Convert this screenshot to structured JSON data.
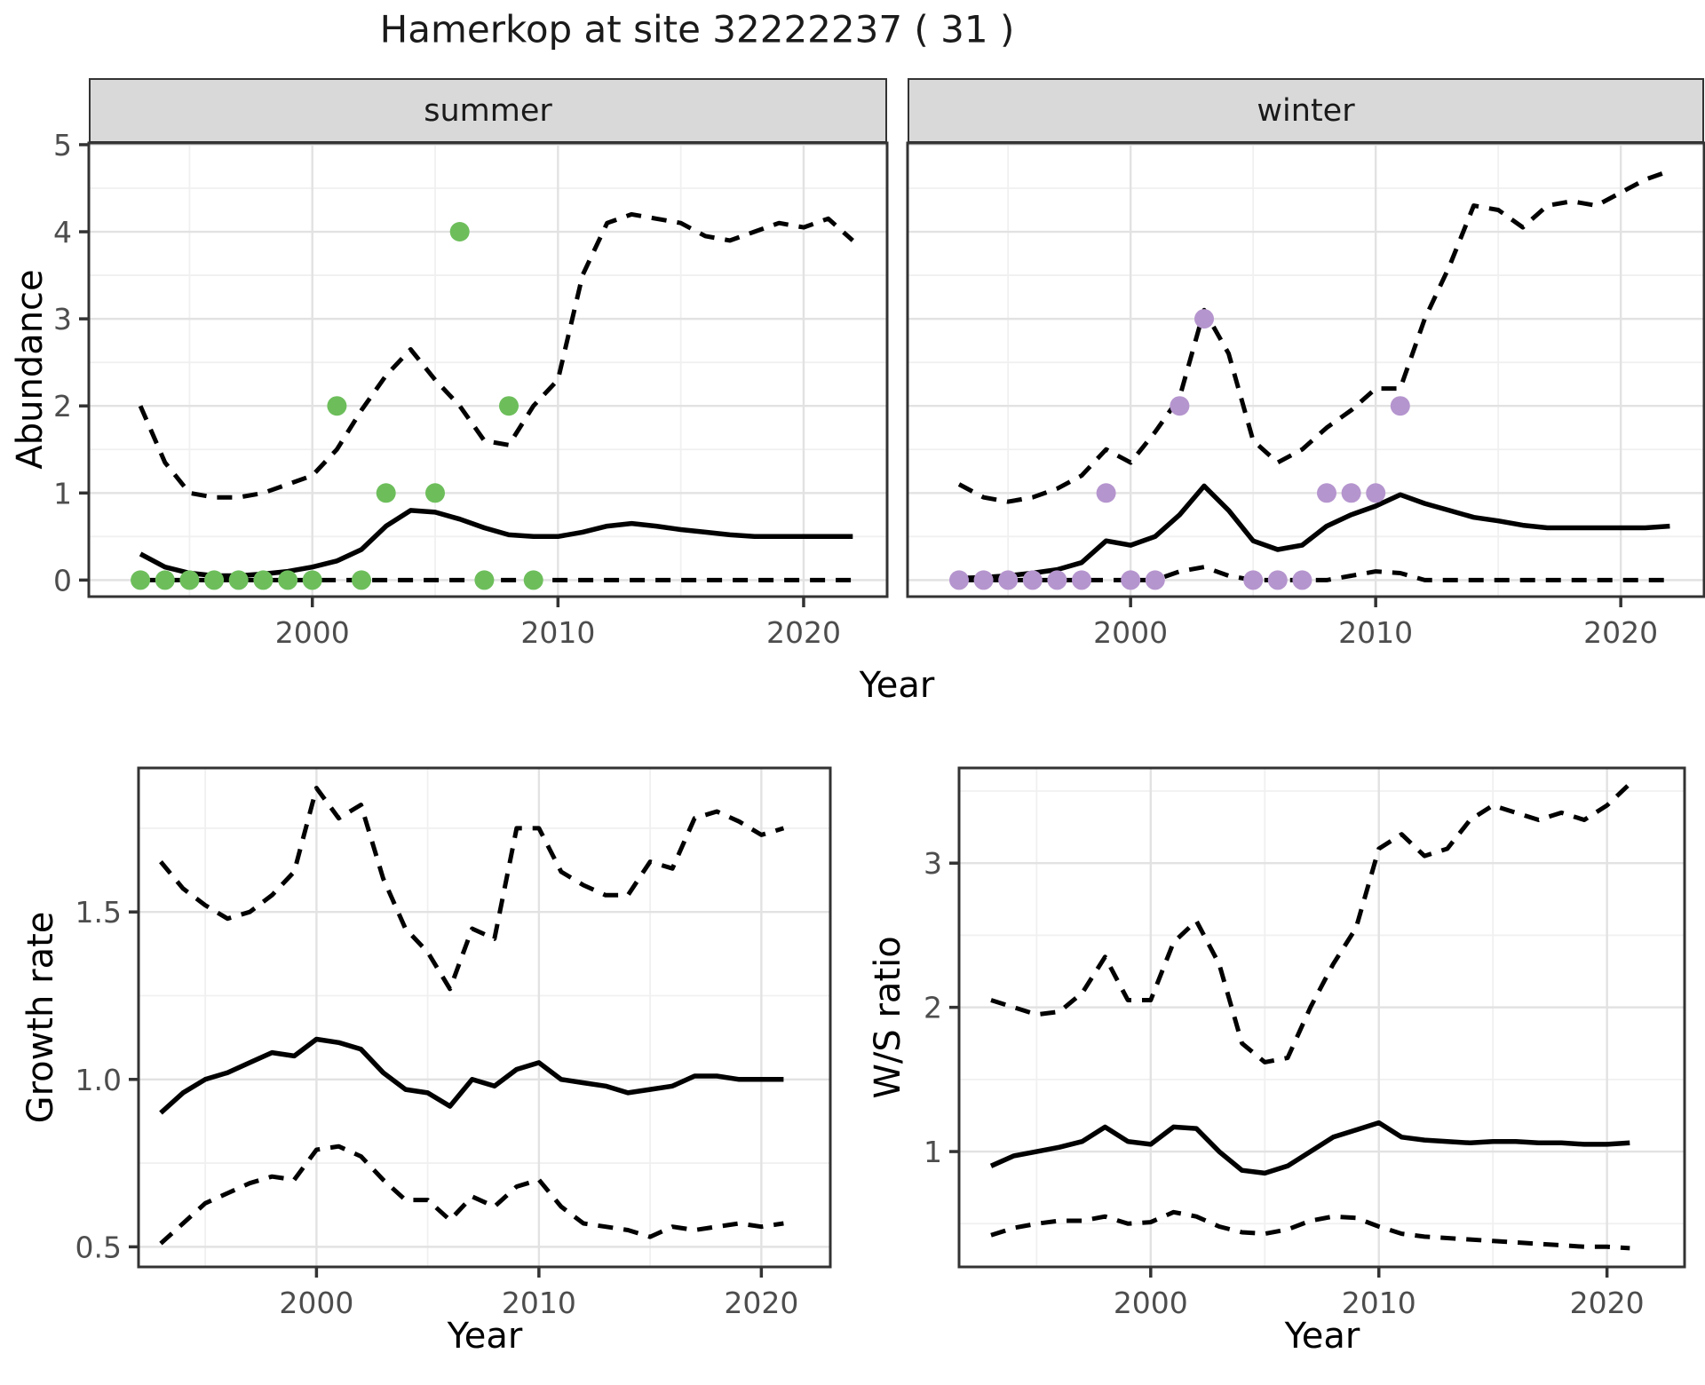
{
  "title": "Hamerkop at site 32222237 ( 31 )",
  "labels": {
    "abundance": "Abundance",
    "growth_rate": "Growth rate",
    "ws_ratio": "W/S ratio",
    "year": "Year"
  },
  "colors": {
    "panel_bg": "#ffffff",
    "panel_border": "#333333",
    "grid_major": "#e2e2e2",
    "grid_minor": "#f0f0f0",
    "tick_text": "#4d4d4d",
    "line": "#000000",
    "strip_bg": "#d9d9d9",
    "summer_point": "#6dbe5b",
    "winter_point": "#b595ce"
  },
  "chart_data": [
    {
      "id": "summer",
      "type": "line",
      "facet": "summer",
      "title": "Abundance, summer facet",
      "xlabel": "Year",
      "ylabel": "Abundance",
      "xlim": [
        1990.9,
        2023.4
      ],
      "ylim": [
        -0.19,
        5.02
      ],
      "x_ticks": [
        2000,
        2010,
        2020
      ],
      "x_minor": [
        1995,
        2005,
        2015
      ],
      "y_ticks": {
        "values": [
          0,
          1,
          2,
          3,
          4,
          5
        ],
        "labels": [
          "0",
          "1",
          "2",
          "3",
          "4",
          "5"
        ]
      },
      "y_minor": [
        0.5,
        1.5,
        2.5,
        3.5,
        4.5
      ],
      "x": [
        1993,
        1994,
        1995,
        1996,
        1997,
        1998,
        1999,
        2000,
        2001,
        2002,
        2003,
        2004,
        2005,
        2006,
        2007,
        2008,
        2009,
        2010,
        2011,
        2012,
        2013,
        2014,
        2015,
        2016,
        2017,
        2018,
        2019,
        2020,
        2021,
        2022
      ],
      "series": [
        {
          "name": "upper_95ci",
          "style": "dashed",
          "values": [
            2.0,
            1.35,
            1.0,
            0.95,
            0.95,
            1.0,
            1.1,
            1.2,
            1.5,
            1.95,
            2.35,
            2.65,
            2.3,
            2.0,
            1.6,
            1.55,
            2.0,
            2.3,
            3.5,
            4.1,
            4.2,
            4.15,
            4.1,
            3.95,
            3.9,
            4.0,
            4.1,
            4.05,
            4.15,
            3.9
          ]
        },
        {
          "name": "mean",
          "style": "solid",
          "values": [
            0.3,
            0.15,
            0.08,
            0.05,
            0.05,
            0.07,
            0.1,
            0.15,
            0.22,
            0.35,
            0.62,
            0.8,
            0.78,
            0.7,
            0.6,
            0.52,
            0.5,
            0.5,
            0.55,
            0.62,
            0.65,
            0.62,
            0.58,
            0.55,
            0.52,
            0.5,
            0.5,
            0.5,
            0.5,
            0.5
          ]
        },
        {
          "name": "lower_95ci",
          "style": "dashed",
          "values": [
            0,
            0,
            0,
            0,
            0,
            0,
            0,
            0,
            0,
            0,
            0,
            0,
            0,
            0,
            0,
            0,
            0,
            0,
            0,
            0,
            0,
            0,
            0,
            0,
            0,
            0,
            0,
            0,
            0,
            0
          ]
        }
      ],
      "points": {
        "color_key": "summer_point",
        "x": [
          1993,
          1994,
          1995,
          1996,
          1997,
          1998,
          1999,
          2000,
          2001,
          2002,
          2003,
          2005,
          2006,
          2007,
          2008,
          2009
        ],
        "y": [
          0,
          0,
          0,
          0,
          0,
          0,
          0,
          0,
          2,
          0,
          1,
          1,
          4,
          0,
          2,
          0
        ]
      }
    },
    {
      "id": "winter",
      "type": "line",
      "facet": "winter",
      "title": "Abundance, winter facet",
      "xlabel": "Year",
      "ylabel": "Abundance",
      "xlim": [
        1990.9,
        2023.4
      ],
      "ylim": [
        -0.19,
        5.02
      ],
      "x_ticks": [
        2000,
        2010,
        2020
      ],
      "x_minor": [
        1995,
        2005,
        2015
      ],
      "y_ticks": {
        "values": [
          0,
          1,
          2,
          3,
          4,
          5
        ],
        "labels": null
      },
      "y_minor": [
        0.5,
        1.5,
        2.5,
        3.5,
        4.5
      ],
      "x": [
        1993,
        1994,
        1995,
        1996,
        1997,
        1998,
        1999,
        2000,
        2001,
        2002,
        2003,
        2004,
        2005,
        2006,
        2007,
        2008,
        2009,
        2010,
        2011,
        2012,
        2013,
        2014,
        2015,
        2016,
        2017,
        2018,
        2019,
        2020,
        2021,
        2022
      ],
      "series": [
        {
          "name": "upper_95ci",
          "style": "dashed",
          "values": [
            1.1,
            0.95,
            0.9,
            0.95,
            1.05,
            1.2,
            1.5,
            1.35,
            1.7,
            2.1,
            3.1,
            2.6,
            1.6,
            1.35,
            1.5,
            1.75,
            1.95,
            2.2,
            2.2,
            3.0,
            3.6,
            4.3,
            4.25,
            4.05,
            4.3,
            4.35,
            4.3,
            4.45,
            4.6,
            4.7
          ]
        },
        {
          "name": "mean",
          "style": "solid",
          "values": [
            0.02,
            0.03,
            0.05,
            0.08,
            0.12,
            0.2,
            0.45,
            0.4,
            0.5,
            0.75,
            1.08,
            0.8,
            0.45,
            0.35,
            0.4,
            0.62,
            0.75,
            0.85,
            0.98,
            0.88,
            0.8,
            0.72,
            0.68,
            0.63,
            0.6,
            0.6,
            0.6,
            0.6,
            0.6,
            0.62
          ]
        },
        {
          "name": "lower_95ci",
          "style": "dashed",
          "values": [
            0,
            0,
            0,
            0,
            0,
            0,
            0,
            0,
            0,
            0.1,
            0.15,
            0.05,
            0,
            0,
            0,
            0,
            0.05,
            0.1,
            0.08,
            0,
            0,
            0,
            0,
            0,
            0,
            0,
            0,
            0,
            0,
            0
          ]
        }
      ],
      "points": {
        "color_key": "winter_point",
        "x": [
          1993,
          1994,
          1995,
          1996,
          1997,
          1998,
          1999,
          2000,
          2001,
          2002,
          2003,
          2005,
          2006,
          2007,
          2008,
          2009,
          2010,
          2011
        ],
        "y": [
          0,
          0,
          0,
          0,
          0,
          0,
          1,
          0,
          0,
          2,
          3,
          0,
          0,
          0,
          1,
          1,
          1,
          2
        ]
      }
    },
    {
      "id": "growth",
      "type": "line",
      "title": "Growth rate",
      "xlabel": "Year",
      "ylabel": "Growth rate",
      "xlim": [
        1992.0,
        2023.1
      ],
      "ylim": [
        0.44,
        1.93
      ],
      "x_ticks": [
        2000,
        2010,
        2020
      ],
      "x_minor": [
        1995,
        2005,
        2015
      ],
      "y_ticks": {
        "values": [
          0.5,
          1.0,
          1.5
        ],
        "labels": [
          "0.5",
          "1.0",
          "1.5"
        ]
      },
      "y_minor": [
        0.75,
        1.25,
        1.75
      ],
      "x": [
        1993,
        1994,
        1995,
        1996,
        1997,
        1998,
        1999,
        2000,
        2001,
        2002,
        2003,
        2004,
        2005,
        2006,
        2007,
        2008,
        2009,
        2010,
        2011,
        2012,
        2013,
        2014,
        2015,
        2016,
        2017,
        2018,
        2019,
        2020,
        2021
      ],
      "series": [
        {
          "name": "upper_95ci",
          "style": "dashed",
          "values": [
            1.65,
            1.57,
            1.52,
            1.48,
            1.5,
            1.55,
            1.62,
            1.87,
            1.78,
            1.82,
            1.6,
            1.45,
            1.38,
            1.27,
            1.45,
            1.42,
            1.75,
            1.75,
            1.62,
            1.58,
            1.55,
            1.55,
            1.65,
            1.63,
            1.78,
            1.8,
            1.77,
            1.73,
            1.75
          ]
        },
        {
          "name": "mean",
          "style": "solid",
          "values": [
            0.9,
            0.96,
            1.0,
            1.02,
            1.05,
            1.08,
            1.07,
            1.12,
            1.11,
            1.09,
            1.02,
            0.97,
            0.96,
            0.92,
            1.0,
            0.98,
            1.03,
            1.05,
            1.0,
            0.99,
            0.98,
            0.96,
            0.97,
            0.98,
            1.01,
            1.01,
            1.0,
            1.0,
            1.0
          ]
        },
        {
          "name": "lower_95ci",
          "style": "dashed",
          "values": [
            0.51,
            0.57,
            0.63,
            0.66,
            0.69,
            0.71,
            0.7,
            0.79,
            0.8,
            0.77,
            0.7,
            0.64,
            0.64,
            0.58,
            0.65,
            0.62,
            0.68,
            0.7,
            0.62,
            0.57,
            0.56,
            0.55,
            0.53,
            0.56,
            0.55,
            0.56,
            0.57,
            0.56,
            0.57
          ]
        }
      ]
    },
    {
      "id": "ws",
      "type": "line",
      "title": "W/S ratio",
      "xlabel": "Year",
      "ylabel": "W/S ratio",
      "xlim": [
        1991.6,
        2023.4
      ],
      "ylim": [
        0.2,
        3.66
      ],
      "x_ticks": [
        2000,
        2010,
        2020
      ],
      "x_minor": [
        1995,
        2005,
        2015
      ],
      "y_ticks": {
        "values": [
          1,
          2,
          3
        ],
        "labels": [
          "1",
          "2",
          "3"
        ]
      },
      "y_minor": [
        0.5,
        1.5,
        2.5,
        3.5
      ],
      "x": [
        1993,
        1994,
        1995,
        1996,
        1997,
        1998,
        1999,
        2000,
        2001,
        2002,
        2003,
        2004,
        2005,
        2006,
        2007,
        2008,
        2009,
        2010,
        2011,
        2012,
        2013,
        2014,
        2015,
        2016,
        2017,
        2018,
        2019,
        2020,
        2021
      ],
      "series": [
        {
          "name": "upper_95ci",
          "style": "dashed",
          "values": [
            2.05,
            2.0,
            1.95,
            1.97,
            2.1,
            2.35,
            2.05,
            2.05,
            2.45,
            2.6,
            2.3,
            1.75,
            1.62,
            1.65,
            2.0,
            2.3,
            2.55,
            3.1,
            3.2,
            3.05,
            3.1,
            3.3,
            3.4,
            3.35,
            3.3,
            3.35,
            3.3,
            3.4,
            3.55
          ]
        },
        {
          "name": "mean",
          "style": "solid",
          "values": [
            0.9,
            0.97,
            1.0,
            1.03,
            1.07,
            1.17,
            1.07,
            1.05,
            1.17,
            1.16,
            1.0,
            0.87,
            0.85,
            0.9,
            1.0,
            1.1,
            1.15,
            1.2,
            1.1,
            1.08,
            1.07,
            1.06,
            1.07,
            1.07,
            1.06,
            1.06,
            1.05,
            1.05,
            1.06
          ]
        },
        {
          "name": "lower_95ci",
          "style": "dashed",
          "values": [
            0.42,
            0.47,
            0.5,
            0.52,
            0.52,
            0.55,
            0.5,
            0.51,
            0.58,
            0.55,
            0.48,
            0.44,
            0.43,
            0.46,
            0.52,
            0.55,
            0.54,
            0.48,
            0.43,
            0.41,
            0.4,
            0.39,
            0.38,
            0.37,
            0.36,
            0.35,
            0.34,
            0.34,
            0.33
          ]
        }
      ]
    }
  ]
}
